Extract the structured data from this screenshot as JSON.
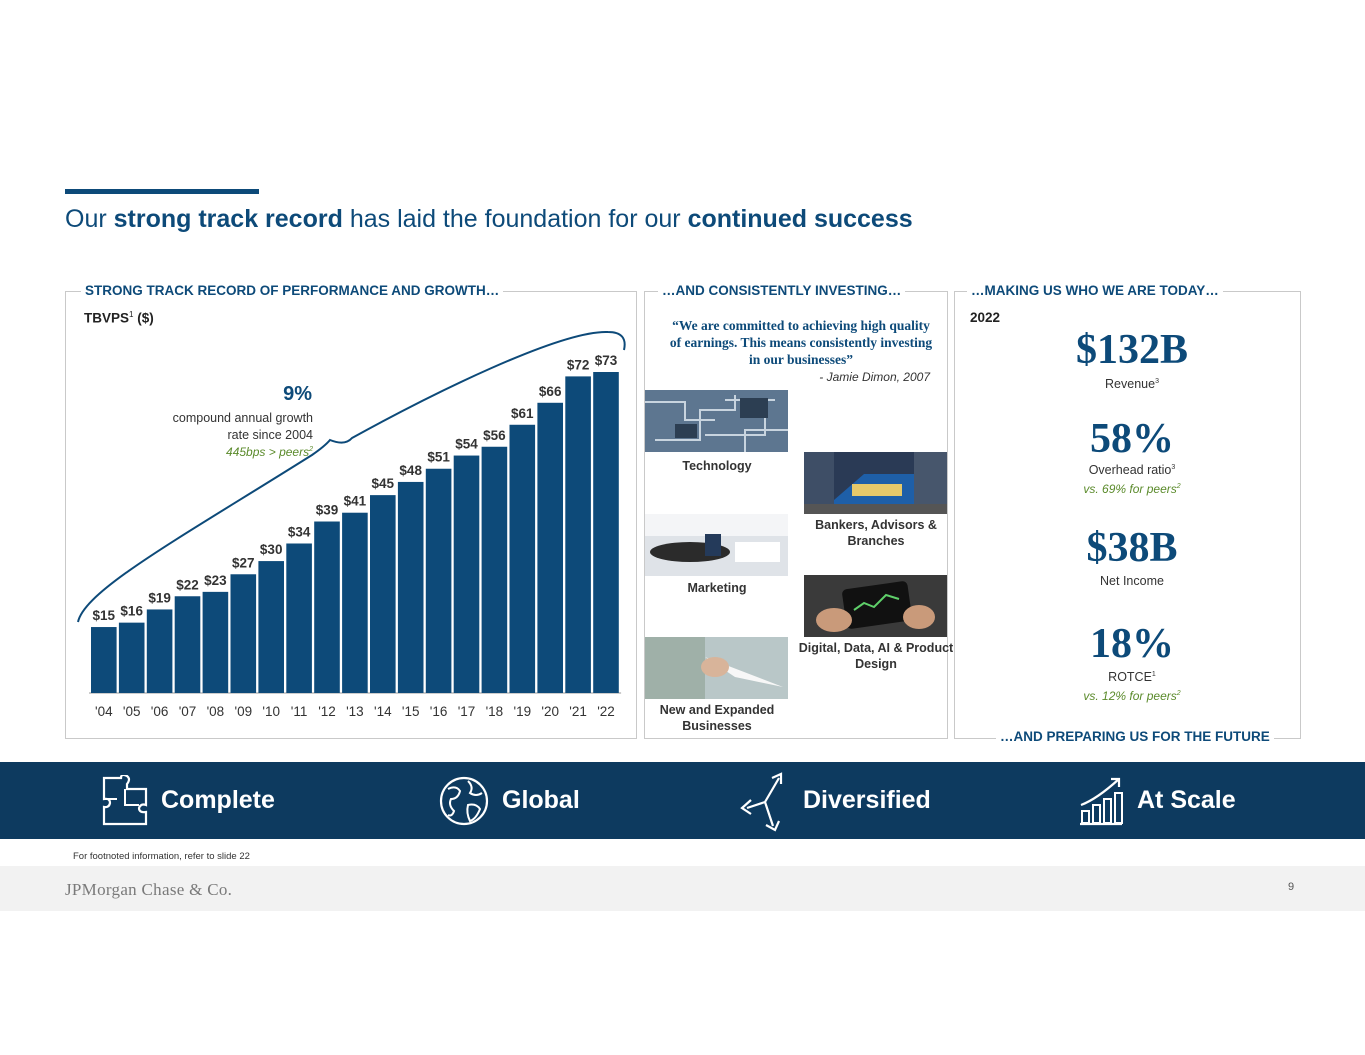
{
  "title": {
    "part1": "Our ",
    "bold1": "strong track record",
    "part2": " has laid the foundation for our ",
    "bold2": "continued success"
  },
  "panels": {
    "performance": {
      "heading": "STRONG TRACK RECORD OF PERFORMANCE AND GROWTH…",
      "metric": "TBVPS",
      "metric_sup": "1",
      "metric_unit": " ($)"
    },
    "investing": {
      "heading": "…AND CONSISTENTLY INVESTING…",
      "quote": "“We are committed to achieving high quality of earnings. This means consistently investing in our businesses”",
      "quote_attribution": "- Jamie Dimon, 2007",
      "areas": [
        {
          "label": "Technology"
        },
        {
          "label": "Bankers, Advisors & Branches"
        },
        {
          "label": "Marketing"
        },
        {
          "label": "Digital, Data, AI & Product Design"
        },
        {
          "label": "New and Expanded Businesses"
        }
      ]
    },
    "today": {
      "heading": "…MAKING US WHO WE ARE TODAY…",
      "year": "2022",
      "stats": [
        {
          "value": "$132B",
          "label": "Revenue",
          "sup": "3",
          "peer": ""
        },
        {
          "value": "58%",
          "label": "Overhead ratio",
          "sup": "3",
          "peer": "vs. 69% for peers",
          "peer_sup": "2"
        },
        {
          "value": "$38B",
          "label": "Net Income",
          "sup": "",
          "peer": ""
        },
        {
          "value": "18%",
          "label": "ROTCE",
          "sup": "1",
          "peer": "vs. 12% for peers",
          "peer_sup": "2"
        }
      ],
      "future_line": "…AND PREPARING US FOR THE FUTURE"
    }
  },
  "cagr": {
    "value": "9%",
    "description": "compound annual growth rate since 2004",
    "peer_note": "445bps > peers",
    "peer_sup": "2"
  },
  "pillars": [
    {
      "label": "Complete",
      "icon": "puzzle-icon"
    },
    {
      "label": "Global",
      "icon": "globe-icon"
    },
    {
      "label": "Diversified",
      "icon": "diversified-arrows-icon"
    },
    {
      "label": "At Scale",
      "icon": "growth-chart-icon"
    }
  ],
  "footnote": "For footnoted information, refer to slide 22",
  "footer": {
    "logo": "JPMorgan Chase & Co.",
    "page": "9"
  },
  "colors": {
    "brand": "#0d4a79",
    "band": "#0d3a5f",
    "peer_green": "#5a8a2a",
    "footer_bg": "#f2f2f2"
  },
  "chart_data": {
    "type": "bar",
    "title": "TBVPS ($)",
    "categories": [
      "'04",
      "'05",
      "'06",
      "'07",
      "'08",
      "'09",
      "'10",
      "'11",
      "'12",
      "'13",
      "'14",
      "'15",
      "'16",
      "'17",
      "'18",
      "'19",
      "'20",
      "'21",
      "'22"
    ],
    "values": [
      15,
      16,
      19,
      22,
      23,
      27,
      30,
      34,
      39,
      41,
      45,
      48,
      51,
      54,
      56,
      61,
      66,
      72,
      73
    ],
    "data_labels": [
      "$15",
      "$16",
      "$19",
      "$22",
      "$23",
      "$27",
      "$30",
      "$34",
      "$39",
      "$41",
      "$45",
      "$48",
      "$51",
      "$54",
      "$56",
      "$61",
      "$66",
      "$72",
      "$73"
    ],
    "xlabel": "",
    "ylabel": "",
    "ylim": [
      0,
      73
    ],
    "grid": false,
    "color": "#0d4a79"
  }
}
